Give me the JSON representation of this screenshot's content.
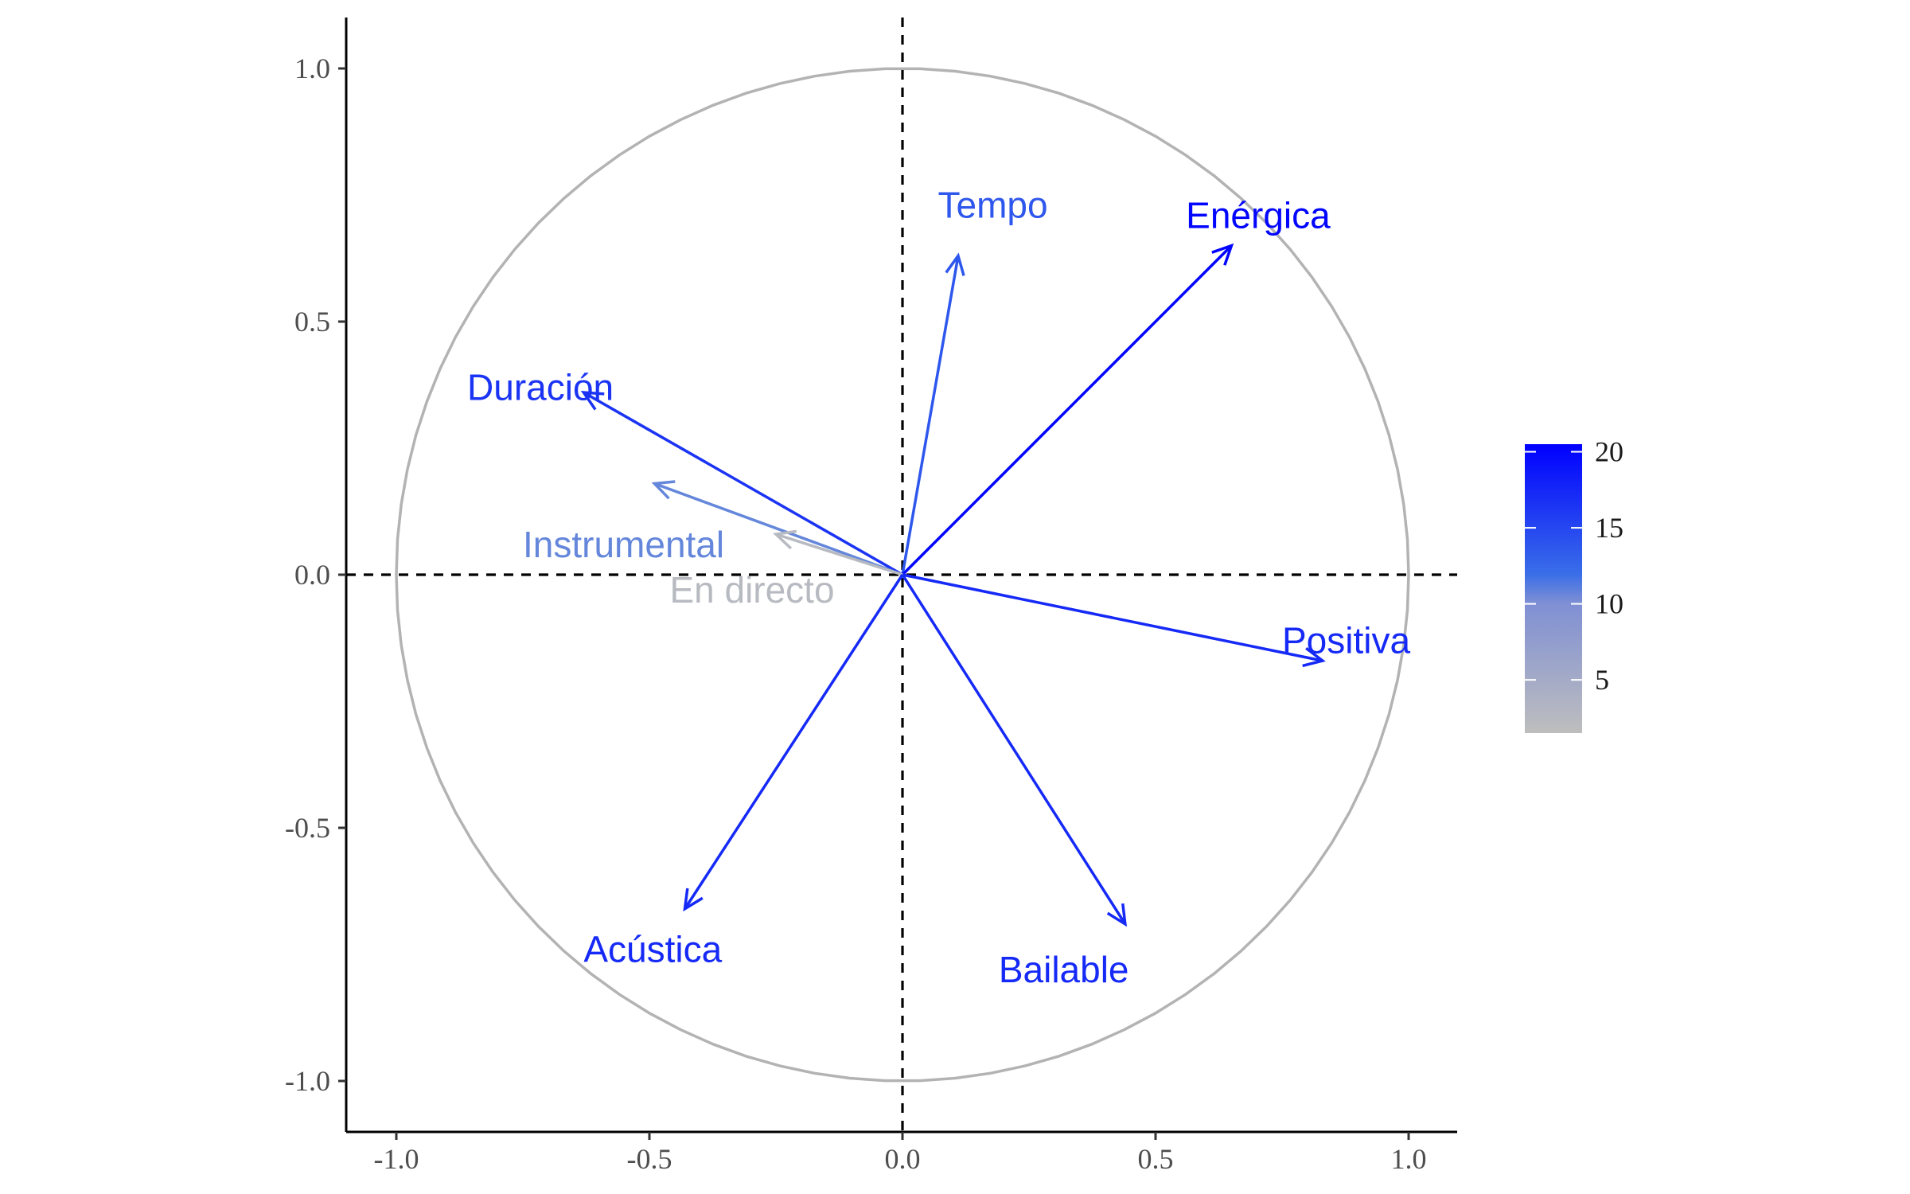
{
  "chart_data": {
    "type": "scatter",
    "subtype": "pca-correlation-circle",
    "title": "",
    "xlabel": "",
    "ylabel": "",
    "xlim": [
      -1.1,
      1.1
    ],
    "ylim": [
      -1.1,
      1.1
    ],
    "x_ticks": [
      -1.0,
      -0.5,
      0.0,
      0.5,
      1.0
    ],
    "x_tick_labels": [
      "-1.0",
      "-0.5",
      "0.0",
      "0.5",
      "1.0"
    ],
    "y_ticks": [
      -1.0,
      -0.5,
      0.0,
      0.5,
      1.0
    ],
    "y_tick_labels": [
      "-1.0",
      "-0.5",
      "0.0",
      "0.5",
      "1.0"
    ],
    "grid": false,
    "reference_lines": {
      "x": 0,
      "y": 0,
      "style": "dashed"
    },
    "unit_circle": true,
    "variables": [
      {
        "name": "Tempo",
        "x": 0.11,
        "y": 0.63,
        "contrib": 13
      },
      {
        "name": "Enérgica",
        "x": 0.65,
        "y": 0.65,
        "contrib": 20
      },
      {
        "name": "Duración",
        "x": -0.63,
        "y": 0.36,
        "contrib": 16
      },
      {
        "name": "Instrumental",
        "x": -0.49,
        "y": 0.18,
        "contrib": 8
      },
      {
        "name": "En directo",
        "x": -0.25,
        "y": 0.08,
        "contrib": 2
      },
      {
        "name": "Positiva",
        "x": 0.83,
        "y": -0.17,
        "contrib": 17
      },
      {
        "name": "Acústica",
        "x": -0.43,
        "y": -0.66,
        "contrib": 17
      },
      {
        "name": "Bailable",
        "x": 0.44,
        "y": -0.69,
        "contrib": 17
      }
    ],
    "legend": {
      "type": "colorbar",
      "placement": "right",
      "min": 1.5,
      "max": 20.5,
      "ticks": [
        5,
        10,
        15,
        20
      ],
      "tick_labels": [
        "5",
        "10",
        "15",
        "20"
      ],
      "colors": {
        "low": "#bebebe",
        "mid": "#3a6ee8",
        "high": "#0000ff"
      }
    }
  }
}
